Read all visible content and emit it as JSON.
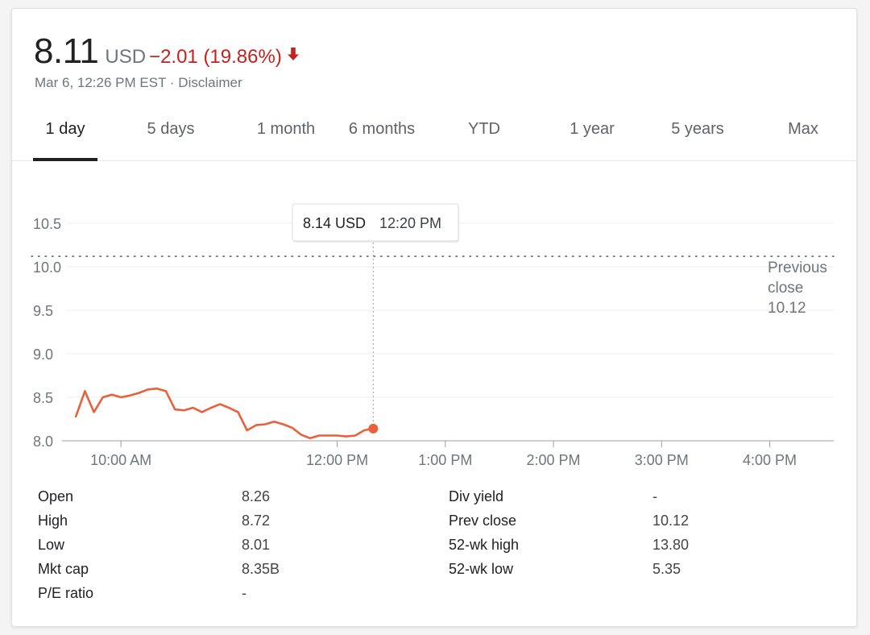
{
  "quote": {
    "price": "8.11",
    "currency": "USD",
    "change": "−2.01 (19.86%)",
    "direction_icon": "arrow-down-icon",
    "timestamp": "Mar 6, 12:26 PM EST",
    "separator": "·",
    "disclaimer": "Disclaimer",
    "down_color": "#c5221f"
  },
  "tabs": [
    {
      "label": "1 day",
      "active": true
    },
    {
      "label": "5 days"
    },
    {
      "label": "1 month"
    },
    {
      "label": "6 months"
    },
    {
      "label": "YTD"
    },
    {
      "label": "1 year"
    },
    {
      "label": "5 years"
    },
    {
      "label": "Max"
    }
  ],
  "chart_data": {
    "type": "line",
    "x_tick_labels": [
      "10:00 AM",
      "12:00 PM",
      "1:00 PM",
      "2:00 PM",
      "3:00 PM",
      "4:00 PM"
    ],
    "x_ticks": [
      "10:00",
      "12:00",
      "13:00",
      "14:00",
      "15:00",
      "16:00"
    ],
    "y_ticks": [
      8.0,
      8.5,
      9.0,
      9.5,
      10.0,
      10.5
    ],
    "y_tick_labels": [
      "8.0",
      "8.5",
      "9.0",
      "9.5",
      "10.0",
      "10.5"
    ],
    "ylim": [
      8.0,
      10.75
    ],
    "xlim": [
      "09:30",
      "16:40"
    ],
    "series": [
      {
        "color": "#e8603c",
        "x": [
          "09:35",
          "09:40",
          "09:45",
          "09:50",
          "09:55",
          "10:00",
          "10:05",
          "10:10",
          "10:15",
          "10:20",
          "10:25",
          "10:30",
          "10:35",
          "10:40",
          "10:45",
          "10:50",
          "10:55",
          "11:00",
          "11:05",
          "11:10",
          "11:15",
          "11:20",
          "11:25",
          "11:30",
          "11:35",
          "11:40",
          "11:45",
          "11:50",
          "11:55",
          "12:00",
          "12:05",
          "12:10",
          "12:15",
          "12:20"
        ],
        "values": [
          8.28,
          8.57,
          8.33,
          8.5,
          8.53,
          8.5,
          8.52,
          8.55,
          8.59,
          8.6,
          8.57,
          8.36,
          8.35,
          8.38,
          8.33,
          8.38,
          8.42,
          8.38,
          8.33,
          8.12,
          8.18,
          8.19,
          8.22,
          8.19,
          8.15,
          8.07,
          8.03,
          8.06,
          8.06,
          8.06,
          8.05,
          8.06,
          8.12,
          8.14
        ]
      }
    ],
    "reference_line": {
      "value": 10.12,
      "style": "dotted",
      "label": [
        "Previous",
        "close",
        "10.12"
      ]
    },
    "tooltip": {
      "value": "8.14 USD",
      "time": "12:20 PM",
      "x": "12:20",
      "y": 8.14
    },
    "grid": "horizontal",
    "legend": "none"
  },
  "stats": {
    "left": [
      {
        "label": "Open",
        "value": "8.26"
      },
      {
        "label": "High",
        "value": "8.72"
      },
      {
        "label": "Low",
        "value": "8.01"
      },
      {
        "label": "Mkt cap",
        "value": "8.35B"
      },
      {
        "label": "P/E ratio",
        "value": "-"
      }
    ],
    "right": [
      {
        "label": "Div yield",
        "value": "-"
      },
      {
        "label": "Prev close",
        "value": "10.12"
      },
      {
        "label": "52-wk high",
        "value": "13.80"
      },
      {
        "label": "52-wk low",
        "value": "5.35"
      }
    ]
  }
}
